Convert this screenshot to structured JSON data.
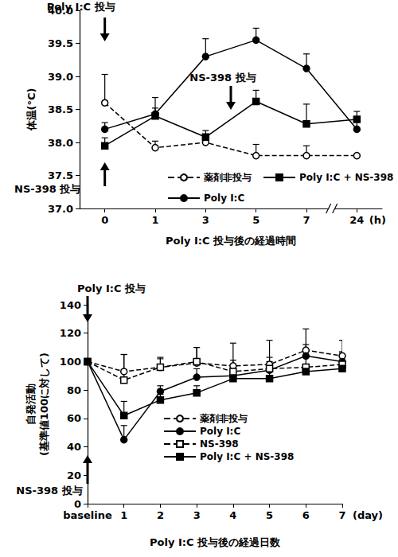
{
  "chart_data": [
    {
      "type": "line",
      "x_label": "Poly I:C 投与後の経過時間",
      "x_unit": "(h)",
      "y_label": "体温(°C)",
      "categories": [
        "0",
        "1",
        "3",
        "5",
        "7",
        "24"
      ],
      "ylim": [
        37,
        40
      ],
      "yticks": [
        {
          "value": 37,
          "label": "37.0"
        },
        37.5,
        {
          "value": 38,
          "label": "38.0"
        },
        38.5,
        {
          "value": 39,
          "label": "39.0"
        },
        39.5,
        {
          "value": 40,
          "label": "40.0"
        }
      ],
      "grid": false,
      "legend": "lower right",
      "annotations": [
        "Poly I:C 投与",
        "NS-398 投与",
        "NS-398 投与"
      ],
      "series": [
        {
          "name": "薬剤非投与",
          "color": "#000000",
          "marker": "circle-open",
          "line_style": "dashed",
          "values": [
            38.6,
            37.92,
            38.0,
            37.8,
            37.8,
            37.8
          ],
          "errors": [
            0.43,
            0.1,
            0.05,
            0.17,
            0.15,
            null
          ]
        },
        {
          "name": "Poly I:C + NS-398",
          "color": "#000000",
          "marker": "square",
          "line_style": "solid",
          "values": [
            37.95,
            38.4,
            38.08,
            38.62,
            38.28,
            38.35
          ],
          "errors": [
            0.12,
            0.12,
            0.1,
            0.17,
            0.3,
            0.12
          ]
        },
        {
          "name": "Poly I:C",
          "color": "#000000",
          "marker": "circle",
          "line_style": "solid",
          "values": [
            38.2,
            38.43,
            39.3,
            39.55,
            39.12,
            38.2
          ],
          "errors": [
            0.1,
            0.25,
            0.27,
            0.18,
            0.22,
            0.15
          ]
        }
      ]
    },
    {
      "type": "line",
      "x_label": "Poly I:C 投与後の経過日数",
      "x_unit": "(day)",
      "y_label": "自発活動\n(基準値100に対して)",
      "categories": [
        "baseline",
        "1",
        "2",
        "3",
        "4",
        "5",
        "6",
        "7"
      ],
      "ylim": [
        0,
        140
      ],
      "yticks": [
        0,
        20,
        40,
        60,
        80,
        100,
        120,
        140
      ],
      "grid": false,
      "legend": "lower center",
      "annotations": [
        "Poly I:C 投与",
        "NS-398 投与"
      ],
      "series": [
        {
          "name": "薬剤非投与",
          "color": "#000000",
          "marker": "circle-open",
          "line_style": "dashed",
          "values": [
            100,
            93,
            96,
            99,
            97,
            98,
            108,
            104
          ],
          "errors": [
            null,
            12,
            6,
            11,
            16,
            17,
            15,
            11
          ]
        },
        {
          "name": "Poly I:C",
          "color": "#000000",
          "marker": "circle",
          "line_style": "solid",
          "values": [
            100,
            45,
            79,
            89,
            90,
            94,
            104,
            100
          ],
          "errors": [
            null,
            10,
            4,
            6,
            6,
            6,
            8,
            6
          ]
        },
        {
          "name": "NS-398",
          "color": "#000000",
          "marker": "square-open",
          "line_style": "dashed",
          "values": [
            100,
            87,
            96,
            100,
            93,
            95,
            96,
            98
          ],
          "errors": [
            null,
            18,
            7,
            10,
            8,
            8,
            7,
            9
          ]
        },
        {
          "name": "Poly I:C + NS-398",
          "color": "#000000",
          "marker": "square",
          "line_style": "solid",
          "values": [
            100,
            62,
            73,
            78,
            88,
            88,
            93,
            95
          ],
          "errors": [
            null,
            10,
            4,
            5,
            5,
            10,
            5,
            8
          ]
        }
      ]
    }
  ]
}
